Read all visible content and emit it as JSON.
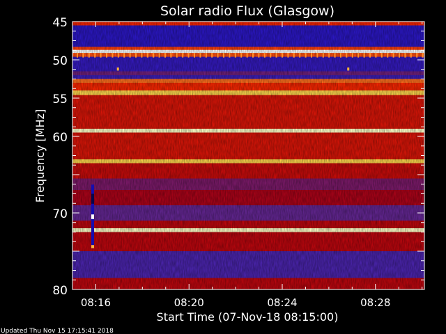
{
  "chart_data": {
    "type": "heatmap",
    "title": "Solar radio Flux (Glasgow)",
    "xlabel": "Start Time (07-Nov-18 08:15:00)",
    "ylabel": "Frequency [MHz]",
    "xlim_minutes": [
      "08:15:00",
      "08:30:06"
    ],
    "ylim": [
      45,
      80
    ],
    "y_inverted": true,
    "xticks": [
      "08:16",
      "08:20",
      "08:24",
      "08:28"
    ],
    "yticks": [
      45,
      50,
      55,
      60,
      70,
      80
    ],
    "colormap": [
      "#000000",
      "#1a10d0",
      "#5a2aa0",
      "#b00010",
      "#ff2a00",
      "#ff9a30",
      "#ffff60",
      "#ffffff"
    ],
    "intensity_bands": [
      {
        "f0": 45.0,
        "f1": 45.5,
        "level": 0.55
      },
      {
        "f0": 45.5,
        "f1": 48.3,
        "level": 0.18
      },
      {
        "f0": 48.3,
        "f1": 48.7,
        "level": 0.6
      },
      {
        "f0": 48.7,
        "f1": 49.1,
        "level": 1.0
      },
      {
        "f0": 49.1,
        "f1": 49.6,
        "level": 0.62
      },
      {
        "f0": 49.6,
        "f1": 51.5,
        "level": 0.2
      },
      {
        "f0": 51.5,
        "f1": 52.0,
        "level": 0.32
      },
      {
        "f0": 52.0,
        "f1": 52.5,
        "level": 0.22
      },
      {
        "f0": 52.5,
        "f1": 53.0,
        "level": 0.66
      },
      {
        "f0": 53.0,
        "f1": 54.0,
        "level": 0.56
      },
      {
        "f0": 54.0,
        "f1": 54.6,
        "level": 0.8
      },
      {
        "f0": 54.6,
        "f1": 59.0,
        "level": 0.5
      },
      {
        "f0": 59.0,
        "f1": 59.5,
        "level": 0.95
      },
      {
        "f0": 59.5,
        "f1": 63.0,
        "level": 0.5
      },
      {
        "f0": 63.0,
        "f1": 63.5,
        "level": 0.8
      },
      {
        "f0": 63.5,
        "f1": 65.5,
        "level": 0.47
      },
      {
        "f0": 65.5,
        "f1": 67.0,
        "level": 0.34
      },
      {
        "f0": 67.0,
        "f1": 69.0,
        "level": 0.42
      },
      {
        "f0": 69.0,
        "f1": 71.0,
        "level": 0.3
      },
      {
        "f0": 71.0,
        "f1": 72.0,
        "level": 0.45
      },
      {
        "f0": 72.0,
        "f1": 72.5,
        "level": 0.95
      },
      {
        "f0": 72.5,
        "f1": 75.0,
        "level": 0.45
      },
      {
        "f0": 75.0,
        "f1": 78.5,
        "level": 0.25
      },
      {
        "f0": 78.5,
        "f1": 80.0,
        "level": 0.45
      }
    ],
    "features": [
      {
        "name": "burst",
        "time": "08:15:52",
        "f0": 66.3,
        "f1": 74.6,
        "level": 0.05,
        "peak_freq": 70.5,
        "peak_level": 1.0
      },
      {
        "name": "spot",
        "time": "08:16:57",
        "f0": 51.0,
        "f1": 51.4,
        "level": 0.75
      },
      {
        "name": "spot",
        "time": "08:26:50",
        "f0": 51.0,
        "f1": 51.4,
        "level": 0.75
      }
    ]
  },
  "footer": {
    "updated": "Updated Thu Nov 15 17:15:41 2018"
  }
}
